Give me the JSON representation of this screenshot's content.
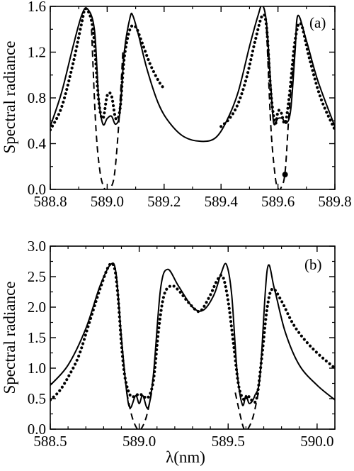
{
  "chart_data": [
    {
      "type": "line",
      "panel_label": "(a)",
      "xlabel": "",
      "ylabel": "Spectral radiance",
      "xlim": [
        588.8,
        589.8
      ],
      "ylim": [
        0,
        1.6
      ],
      "xticks": [
        "588.8",
        "589.0",
        "589.2",
        "589.4",
        "589.6",
        "589.8"
      ],
      "yticks": [
        "0.0",
        "0.4",
        "0.8",
        "1.2",
        "1.6"
      ],
      "series": [
        {
          "style": "solid",
          "x": [
            588.8,
            588.84,
            588.88,
            588.91,
            588.93,
            588.955,
            588.97,
            588.985,
            589.0,
            589.015,
            589.03,
            589.045,
            589.06,
            589.08,
            589.09,
            589.11,
            589.14,
            589.18,
            589.22,
            589.27,
            589.33,
            589.38,
            589.42,
            589.46,
            589.5,
            589.53,
            589.545,
            589.56,
            589.575,
            589.585,
            589.6,
            589.615,
            589.63,
            589.645,
            589.66,
            589.67,
            589.7,
            589.74,
            589.8
          ],
          "y": [
            0.55,
            0.85,
            1.25,
            1.52,
            1.58,
            1.4,
            0.8,
            0.57,
            0.62,
            0.64,
            0.57,
            0.68,
            1.2,
            1.5,
            1.52,
            1.35,
            1.05,
            0.75,
            0.58,
            0.46,
            0.42,
            0.45,
            0.6,
            0.85,
            1.25,
            1.52,
            1.61,
            1.45,
            0.9,
            0.58,
            0.62,
            0.62,
            0.58,
            0.7,
            1.2,
            1.52,
            1.3,
            0.95,
            0.55
          ]
        },
        {
          "style": "dashed",
          "x": [
            588.945,
            588.96,
            588.975,
            588.99,
            589.0,
            589.01,
            589.025,
            589.04,
            589.055
          ],
          "y": [
            1.4,
            0.55,
            0.15,
            0.01,
            0.0,
            0.01,
            0.12,
            0.55,
            1.2
          ],
          "segment2_x": [
            589.56,
            589.575,
            589.59,
            589.6,
            589.61,
            589.625,
            589.64,
            589.66
          ],
          "segment2_y": [
            1.4,
            0.55,
            0.12,
            0.01,
            0.01,
            0.15,
            0.7,
            1.25
          ]
        },
        {
          "style": "dotted",
          "segments": [
            {
              "x": [
                588.8,
                588.84,
                588.88,
                588.91,
                588.925,
                588.95,
                588.97,
                588.985,
                589.0,
                589.015,
                589.03,
                589.045,
                589.06,
                589.08,
                589.1,
                589.12,
                589.15,
                589.18,
                589.2
              ],
              "y": [
                0.52,
                0.72,
                1.1,
                1.45,
                1.58,
                1.4,
                0.78,
                0.62,
                0.82,
                0.82,
                0.62,
                0.7,
                1.15,
                1.4,
                1.42,
                1.3,
                1.1,
                0.95,
                0.88
              ]
            },
            {
              "x": [
                589.4,
                589.43,
                589.46,
                589.49,
                589.52,
                589.545,
                589.56,
                589.575,
                589.59,
                589.6,
                589.61,
                589.625,
                589.64,
                589.66,
                589.68,
                589.71,
                589.75,
                589.8
              ],
              "y": [
                0.55,
                0.62,
                0.75,
                0.98,
                1.3,
                1.52,
                1.42,
                0.85,
                0.58,
                0.68,
                0.68,
                0.58,
                0.82,
                1.3,
                1.45,
                1.15,
                0.8,
                0.52
              ]
            },
            {
              "x": [
                589.625
              ],
              "y": [
                0.13
              ]
            }
          ]
        }
      ]
    },
    {
      "type": "line",
      "panel_label": "(b)",
      "xlabel": "λ(nm)",
      "ylabel": "Spectral radiance",
      "xlim": [
        588.5,
        590.1
      ],
      "ylim": [
        0,
        3.0
      ],
      "xticks": [
        "588.5",
        "589.0",
        "589.5",
        "590.0"
      ],
      "yticks": [
        "0.0",
        "0.5",
        "1.0",
        "1.5",
        "2.0",
        "2.5",
        "3.0"
      ],
      "series": [
        {
          "style": "solid",
          "x": [
            588.5,
            588.6,
            588.7,
            588.78,
            588.84,
            588.87,
            588.9,
            588.93,
            588.95,
            588.98,
            589.0,
            589.02,
            589.05,
            589.08,
            589.12,
            589.16,
            589.22,
            589.3,
            589.36,
            589.42,
            589.46,
            589.49,
            589.52,
            589.55,
            589.58,
            589.6,
            589.62,
            589.65,
            589.68,
            589.72,
            589.76,
            589.82,
            589.9,
            590.0,
            590.1
          ],
          "y": [
            0.72,
            1.05,
            1.65,
            2.35,
            2.7,
            2.55,
            1.5,
            0.6,
            0.35,
            0.55,
            0.42,
            0.55,
            0.35,
            0.9,
            2.3,
            2.62,
            2.35,
            2.0,
            1.95,
            2.2,
            2.55,
            2.7,
            2.2,
            0.95,
            0.4,
            0.55,
            0.42,
            0.55,
            0.9,
            2.62,
            2.3,
            1.6,
            1.05,
            0.72,
            0.48
          ]
        },
        {
          "style": "dashed",
          "x": [
            588.93,
            588.96,
            588.99,
            589.01,
            589.04,
            589.07
          ],
          "y": [
            0.6,
            0.2,
            0.0,
            0.0,
            0.2,
            0.6
          ],
          "segment2_x": [
            589.54,
            589.57,
            589.59,
            589.61,
            589.64,
            589.67
          ],
          "segment2_y": [
            0.6,
            0.2,
            0.0,
            0.0,
            0.2,
            0.6
          ]
        },
        {
          "style": "dotted",
          "segments": [
            {
              "x": [
                588.5,
                588.55,
                588.6,
                588.66,
                588.72,
                588.78,
                588.83,
                588.86,
                588.88,
                588.9,
                588.92,
                588.95,
                588.98,
                589.0,
                589.02,
                589.05,
                589.08,
                589.11,
                589.14,
                589.18,
                589.22,
                589.27,
                589.32,
                589.35,
                589.4,
                589.44,
                589.47,
                589.5,
                589.53,
                589.56,
                589.59,
                589.61,
                589.63,
                589.66,
                589.69,
                589.72,
                589.75,
                589.8,
                589.86,
                589.92,
                590.0,
                590.1
              ],
              "y": [
                0.48,
                0.62,
                0.85,
                1.2,
                1.75,
                2.3,
                2.68,
                2.65,
                2.2,
                1.4,
                0.85,
                0.55,
                0.55,
                0.58,
                0.55,
                0.52,
                0.8,
                1.65,
                2.2,
                2.35,
                2.28,
                2.1,
                1.95,
                1.95,
                2.2,
                2.45,
                2.5,
                2.1,
                1.4,
                0.7,
                0.48,
                0.55,
                0.48,
                0.5,
                1.2,
                2.0,
                2.3,
                2.1,
                1.75,
                1.5,
                1.25,
                1.0
              ]
            }
          ]
        }
      ]
    }
  ]
}
